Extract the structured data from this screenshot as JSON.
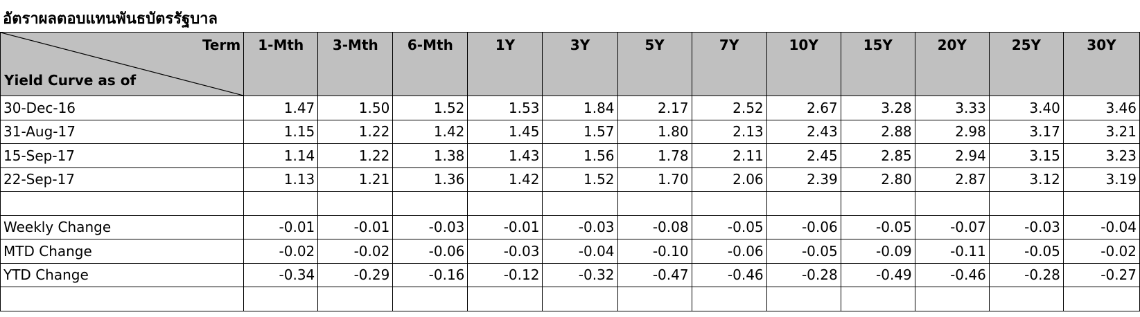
{
  "title": "อัตราผลตอบแทนพันธบัตรรัฐบาล",
  "header": {
    "term_label": "Term",
    "as_of_label": "Yield Curve as of",
    "columns": [
      "1-Mth",
      "3-Mth",
      "6-Mth",
      "1Y",
      "3Y",
      "5Y",
      "7Y",
      "10Y",
      "15Y",
      "20Y",
      "25Y",
      "30Y"
    ]
  },
  "rows": [
    {
      "label": "30-Dec-16",
      "values": [
        "1.47",
        "1.50",
        "1.52",
        "1.53",
        "1.84",
        "2.17",
        "2.52",
        "2.67",
        "3.28",
        "3.33",
        "3.40",
        "3.46"
      ]
    },
    {
      "label": "31-Aug-17",
      "values": [
        "1.15",
        "1.22",
        "1.42",
        "1.45",
        "1.57",
        "1.80",
        "2.13",
        "2.43",
        "2.88",
        "2.98",
        "3.17",
        "3.21"
      ]
    },
    {
      "label": "15-Sep-17",
      "values": [
        "1.14",
        "1.22",
        "1.38",
        "1.43",
        "1.56",
        "1.78",
        "2.11",
        "2.45",
        "2.85",
        "2.94",
        "3.15",
        "3.23"
      ]
    },
    {
      "label": "22-Sep-17",
      "values": [
        "1.13",
        "1.21",
        "1.36",
        "1.42",
        "1.52",
        "1.70",
        "2.06",
        "2.39",
        "2.80",
        "2.87",
        "3.12",
        "3.19"
      ]
    },
    {
      "label": "",
      "values": [
        "",
        "",
        "",
        "",
        "",
        "",
        "",
        "",
        "",
        "",
        "",
        ""
      ]
    },
    {
      "label": "Weekly Change",
      "values": [
        "-0.01",
        "-0.01",
        "-0.03",
        "-0.01",
        "-0.03",
        "-0.08",
        "-0.05",
        "-0.06",
        "-0.05",
        "-0.07",
        "-0.03",
        "-0.04"
      ]
    },
    {
      "label": "MTD Change",
      "values": [
        "-0.02",
        "-0.02",
        "-0.06",
        "-0.03",
        "-0.04",
        "-0.10",
        "-0.06",
        "-0.05",
        "-0.09",
        "-0.11",
        "-0.05",
        "-0.02"
      ]
    },
    {
      "label": "YTD Change",
      "values": [
        "-0.34",
        "-0.29",
        "-0.16",
        "-0.12",
        "-0.32",
        "-0.47",
        "-0.46",
        "-0.28",
        "-0.49",
        "-0.46",
        "-0.28",
        "-0.27"
      ]
    },
    {
      "label": "",
      "values": [
        "",
        "",
        "",
        "",
        "",
        "",
        "",
        "",
        "",
        "",
        "",
        ""
      ]
    }
  ]
}
